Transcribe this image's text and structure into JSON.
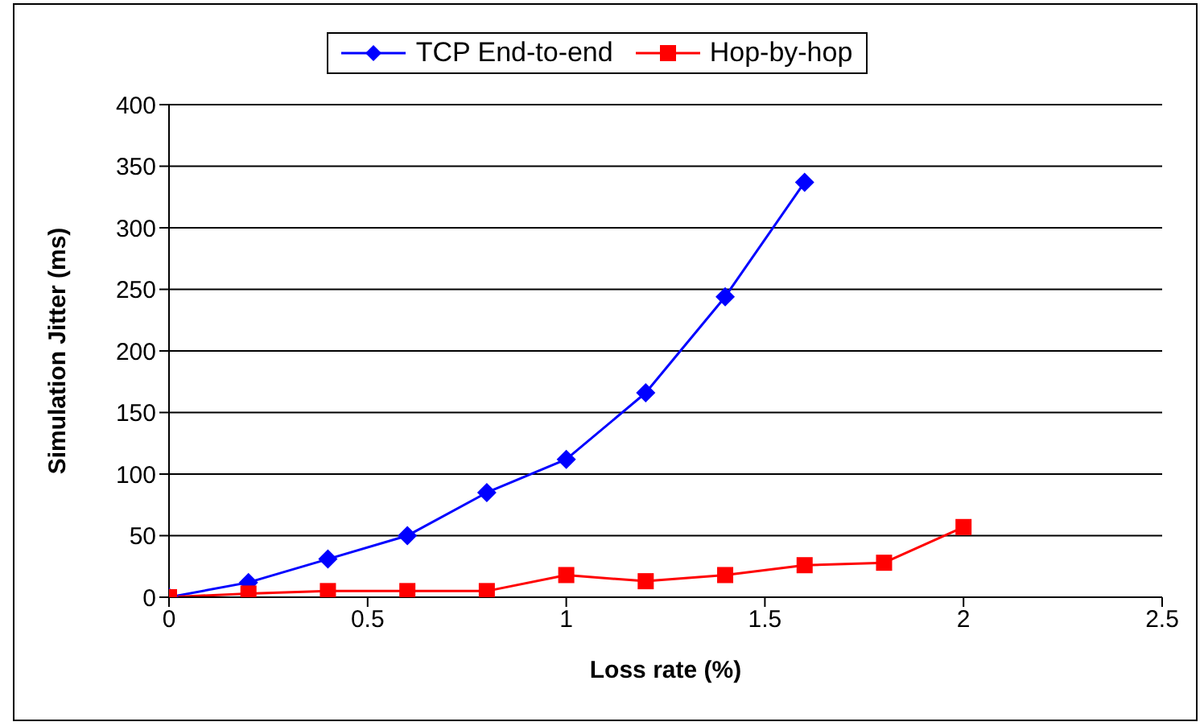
{
  "chart_data": {
    "type": "line",
    "xlabel": "Loss rate (%)",
    "ylabel": "Simulation Jitter (ms)",
    "x": [
      0,
      0.2,
      0.4,
      0.6,
      0.8,
      1.0,
      1.2,
      1.4,
      1.6,
      1.8,
      2.0
    ],
    "series": [
      {
        "name": "TCP End-to-end",
        "color": "#0000ff",
        "marker": "diamond",
        "values": [
          0,
          12,
          31,
          50,
          85,
          112,
          166,
          244,
          337,
          null,
          null
        ]
      },
      {
        "name": "Hop-by-hop",
        "color": "#ff0000",
        "marker": "square",
        "values": [
          0,
          3,
          5,
          5,
          5,
          18,
          13,
          18,
          26,
          28,
          57
        ]
      }
    ],
    "xlim": [
      0,
      2.5
    ],
    "xticks": [
      0,
      0.5,
      1,
      1.5,
      2,
      2.5
    ],
    "ylim": [
      0,
      400
    ],
    "yticks": [
      0,
      50,
      100,
      150,
      200,
      250,
      300,
      350,
      400
    ],
    "grid": "y",
    "legend": "top"
  }
}
